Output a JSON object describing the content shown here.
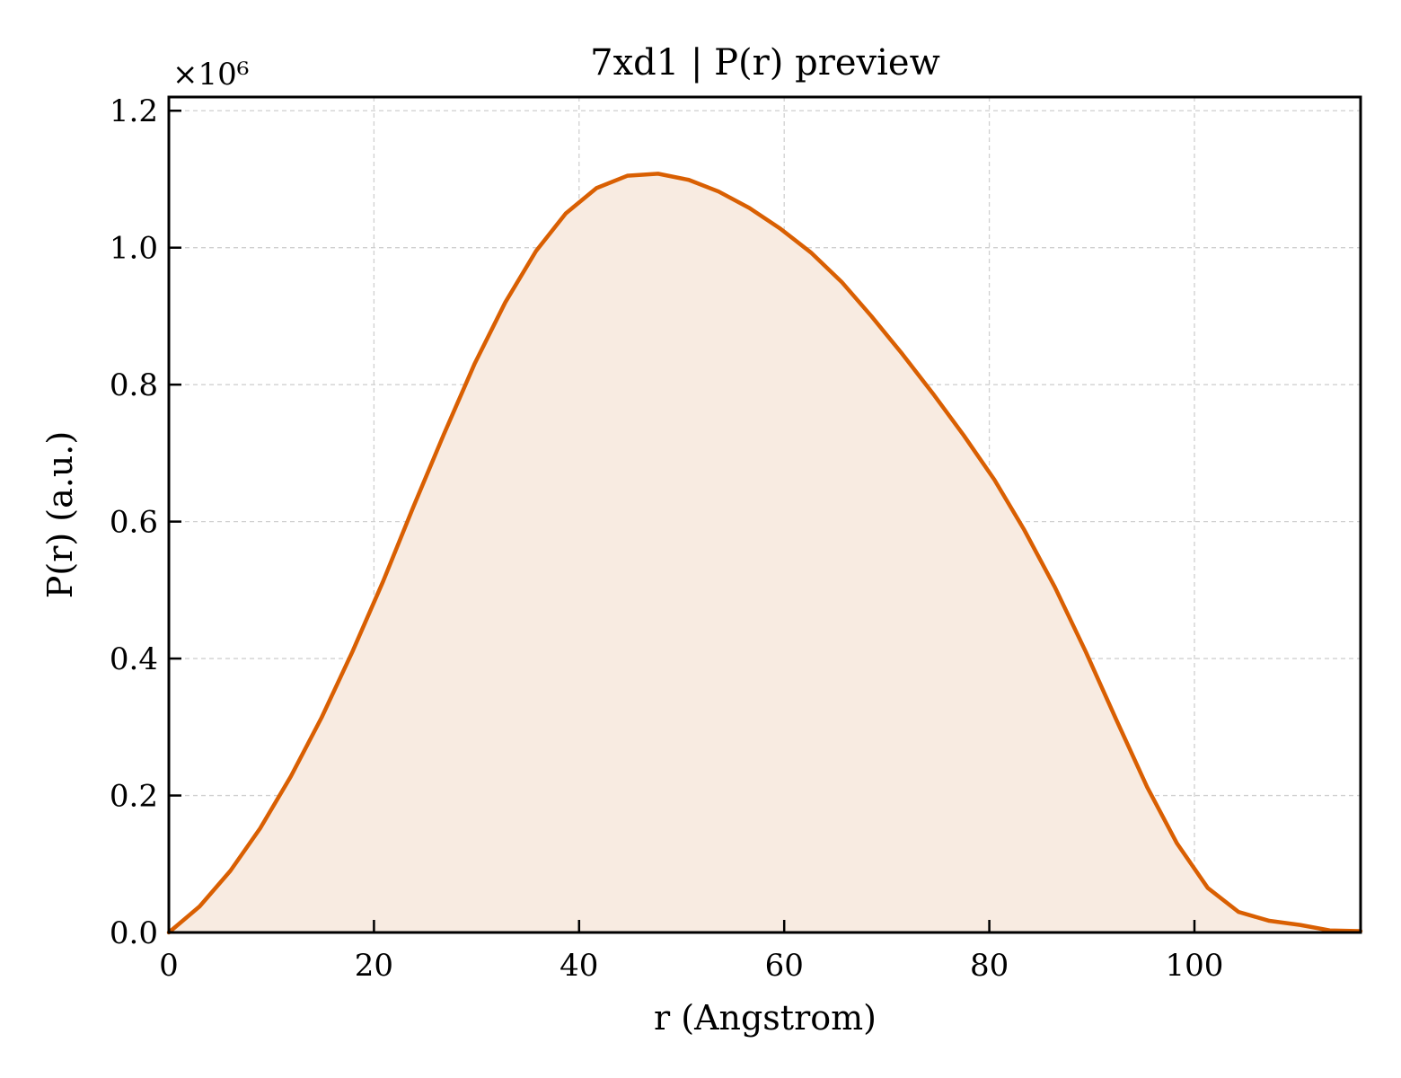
{
  "chart_data": {
    "type": "area",
    "title": "7xd1 | P(r) preview",
    "xlabel": "r (Angstrom)",
    "ylabel": "P(r) (a.u.)",
    "y_multiplier_label": "×10⁶",
    "y_multiplier": 1000000,
    "xlim": [
      0,
      116.2
    ],
    "ylim": [
      0,
      1.22
    ],
    "xticks": [
      0,
      20,
      40,
      60,
      80,
      100
    ],
    "xtick_labels": [
      "0",
      "20",
      "40",
      "60",
      "80",
      "100"
    ],
    "yticks": [
      0.0,
      0.2,
      0.4,
      0.6,
      0.8,
      1.0,
      1.2
    ],
    "ytick_labels": [
      "0.0",
      "0.2",
      "0.4",
      "0.6",
      "0.8",
      "1.0",
      "1.2"
    ],
    "grid": true,
    "line_color": "#d95f02",
    "fill_color": "#f8ebe1",
    "series": [
      {
        "x": [
          0,
          3,
          6,
          8.9,
          11.9,
          14.9,
          17.9,
          20.9,
          23.8,
          26.8,
          29.8,
          32.8,
          35.8,
          38.7,
          41.7,
          44.7,
          47.7,
          50.7,
          53.6,
          56.6,
          59.6,
          62.6,
          65.6,
          68.5,
          71.5,
          74.5,
          77.5,
          80.5,
          83.4,
          86.4,
          89.4,
          92.4,
          95.4,
          98.3,
          101.3,
          104.3,
          107.3,
          110.3,
          113.2,
          116.2
        ],
        "values": [
          0.0,
          0.038,
          0.09,
          0.152,
          0.228,
          0.314,
          0.41,
          0.513,
          0.62,
          0.727,
          0.83,
          0.92,
          0.995,
          1.05,
          1.087,
          1.105,
          1.108,
          1.099,
          1.082,
          1.058,
          1.028,
          0.993,
          0.95,
          0.9,
          0.845,
          0.787,
          0.726,
          0.661,
          0.588,
          0.504,
          0.41,
          0.31,
          0.212,
          0.13,
          0.065,
          0.03,
          0.017,
          0.011,
          0.003,
          0.002
        ]
      }
    ]
  }
}
